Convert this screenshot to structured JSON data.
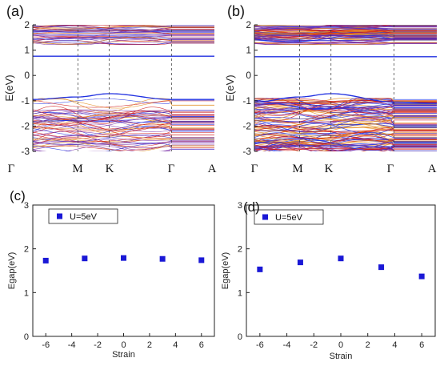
{
  "colors": {
    "band_blue": "#1f2fe0",
    "band_red": "#d01818",
    "band_orange": "#e38a1a",
    "band_purple": "#7a2fa8",
    "marker": "#1a18d6"
  },
  "chart_data": [
    {
      "panel": "(a)",
      "type": "line",
      "subtype": "band-structure",
      "ylabel": "E(eV)",
      "ylim": [
        -3,
        2
      ],
      "yticks": [
        "-3",
        "-2",
        "-1",
        "0",
        "1",
        "2"
      ],
      "k_points": [
        "Γ",
        "M",
        "K",
        "Γ",
        "A"
      ],
      "gap": {
        "vbm": -0.72,
        "cbm": 0.76
      },
      "series": [
        {
          "x": [
            "Γ",
            "M",
            "K",
            "Γ",
            "A"
          ],
          "y": [
            -0.95,
            -0.85,
            -0.72,
            -0.95,
            -0.95
          ]
        },
        {
          "x": [
            "Γ",
            "M",
            "K",
            "Γ",
            "A"
          ],
          "y": [
            0.76,
            0.76,
            0.76,
            0.76,
            0.76
          ]
        }
      ]
    },
    {
      "panel": "(b)",
      "type": "line",
      "subtype": "band-structure",
      "ylabel": "E(eV)",
      "ylim": [
        -3,
        2
      ],
      "yticks": [
        "-3",
        "-2",
        "-1",
        "0",
        "1",
        "2"
      ],
      "k_points": [
        "Γ",
        "M",
        "K",
        "Γ",
        "A"
      ],
      "gap": {
        "vbm": -0.72,
        "cbm": 0.74
      },
      "series": [
        {
          "x": [
            "Γ",
            "M",
            "K",
            "Γ",
            "A"
          ],
          "y": [
            -1.05,
            -0.85,
            -0.72,
            -1.05,
            -1.1
          ]
        },
        {
          "x": [
            "Γ",
            "M",
            "K",
            "Γ",
            "A"
          ],
          "y": [
            0.74,
            0.74,
            0.74,
            0.74,
            0.74
          ]
        }
      ]
    },
    {
      "panel": "(c)",
      "type": "scatter",
      "xlabel": "Strain",
      "ylabel": "Egap(eV)",
      "xlim": [
        -7,
        7
      ],
      "ylim": [
        0,
        3
      ],
      "xticks": [
        "-6",
        "-4",
        "-2",
        "0",
        "2",
        "4",
        "6"
      ],
      "yticks": [
        "0",
        "1",
        "2",
        "3"
      ],
      "series": [
        {
          "name": "U=5eV",
          "x": [
            -6,
            -3,
            0,
            3,
            6
          ],
          "y": [
            1.73,
            1.78,
            1.79,
            1.77,
            1.74
          ]
        }
      ]
    },
    {
      "panel": "(d)",
      "type": "scatter",
      "xlabel": "Strain",
      "ylabel": "Egap(eV)",
      "xlim": [
        -7,
        7
      ],
      "ylim": [
        0,
        3
      ],
      "xticks": [
        "-6",
        "-4",
        "-2",
        "0",
        "2",
        "4",
        "6"
      ],
      "yticks": [
        "0",
        "1",
        "2",
        "3"
      ],
      "series": [
        {
          "name": "U=5eV",
          "x": [
            -6,
            -3,
            0,
            3,
            6
          ],
          "y": [
            1.53,
            1.69,
            1.78,
            1.58,
            1.37
          ]
        }
      ]
    }
  ]
}
